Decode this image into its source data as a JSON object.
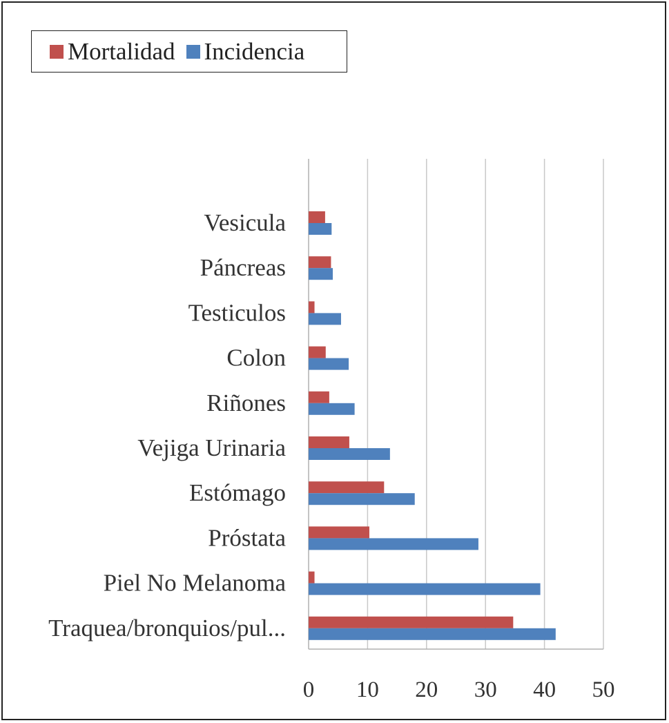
{
  "chart_data": {
    "type": "bar",
    "orientation": "horizontal",
    "categories": [
      "Vesicula",
      "Páncreas",
      "Testiculos",
      "Colon",
      "Riñones",
      "Vejiga Urinaria",
      "Estómago",
      "Próstata",
      "Piel No Melanoma",
      "Traquea/bronquios/pul..."
    ],
    "series": [
      {
        "name": "Mortalidad",
        "color": "#c0504d",
        "values": [
          2.8,
          3.8,
          1.0,
          2.9,
          3.5,
          6.9,
          12.8,
          10.3,
          1.0,
          34.7
        ]
      },
      {
        "name": "Incidencia",
        "color": "#4f81bd",
        "values": [
          3.9,
          4.1,
          5.5,
          6.8,
          7.8,
          13.8,
          18.0,
          28.8,
          39.3,
          41.9
        ]
      }
    ],
    "xlim": [
      0,
      50
    ],
    "xticks": [
      0,
      10,
      20,
      30,
      40,
      50
    ],
    "grid": true,
    "legend": "top-left",
    "title": "",
    "xlabel": "",
    "ylabel": ""
  }
}
